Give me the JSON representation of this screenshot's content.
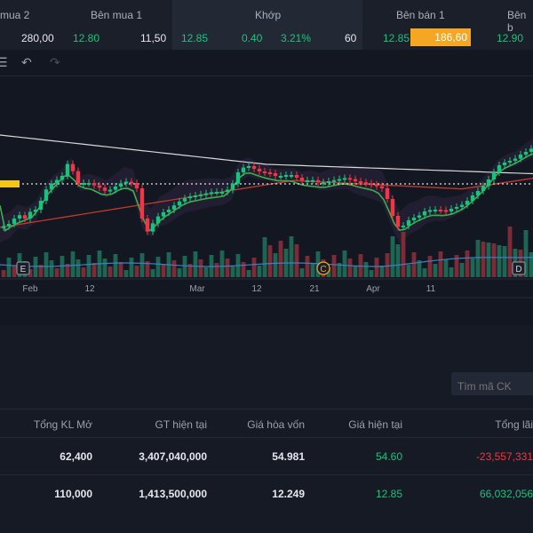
{
  "orderbook": {
    "headers": {
      "buy2": "mua 2",
      "buy1": "Bên mua 1",
      "match": "Khớp",
      "sell1": "Bên bán 1",
      "sell2": "Bên b"
    },
    "values": {
      "buy2_vol": "280,00",
      "buy1_price": "12.80",
      "buy1_vol": "11,50",
      "match_price": "12.85",
      "match_change": "0.40",
      "match_pct": "3.21%",
      "match_vol": "60",
      "sell1_price": "12.85",
      "sell1_vol": "186,60",
      "sell2_price": "12.90"
    }
  },
  "chart_data": {
    "type": "candlestick",
    "x_labels": [
      "Feb",
      "12",
      "Mar",
      "12",
      "21",
      "Apr",
      "11"
    ],
    "markers": [
      "E",
      "C",
      "D"
    ],
    "overlays": [
      "moving average (white)",
      "moving average (green)",
      "moving average (red)",
      "volume bars",
      "volume moving average (blue)"
    ]
  },
  "search": {
    "placeholder": "Tìm mã CK"
  },
  "table": {
    "headers": [
      "Tổng KL Mở",
      "GT hiện tại",
      "Giá hòa vốn",
      "Giá hiện tại",
      "Tổng lãi"
    ],
    "rows": [
      {
        "volume": "62,400",
        "value": "3,407,040,000",
        "breakeven": "54.981",
        "price": "54.60",
        "pnl": "-23,557,331"
      },
      {
        "volume": "110,000",
        "value": "1,413,500,000",
        "breakeven": "12.249",
        "price": "12.85",
        "pnl": "66,032,056"
      }
    ]
  },
  "colors": {
    "up": "#19c37d",
    "down": "#f23645",
    "highlight": "#f5a623",
    "background": "#131722"
  }
}
